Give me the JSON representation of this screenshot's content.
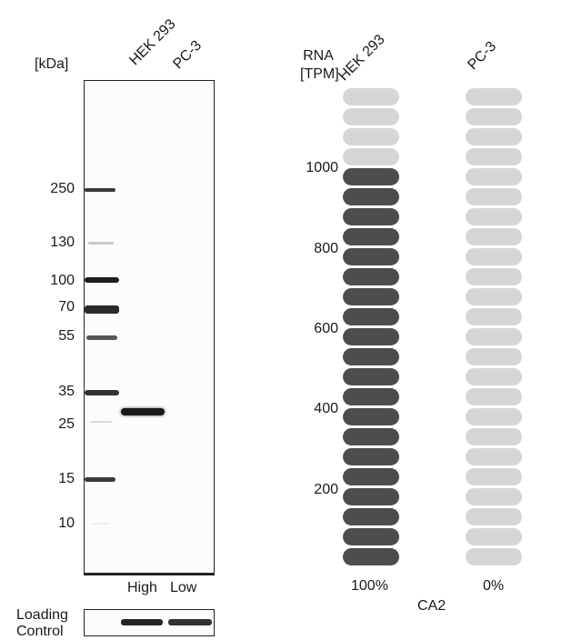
{
  "western_blot": {
    "unit_label": "[kDa]",
    "lanes": [
      "HEK 293",
      "PC-3"
    ],
    "markers": [
      "250",
      "130",
      "100",
      "70",
      "55",
      "35",
      "25",
      "15",
      "10"
    ],
    "expression": [
      "High",
      "Low"
    ],
    "loading_control_line1": "Loading",
    "loading_control_line2": "Control"
  },
  "rna": {
    "header_line1": "RNA",
    "header_line2": "[TPM]",
    "columns": [
      "HEK 293",
      "PC-3"
    ],
    "ticks": [
      "1000",
      "800",
      "600",
      "400",
      "200"
    ],
    "percentages": [
      "100%",
      "0%"
    ],
    "gene": "CA2",
    "colors": {
      "filled": "#4d4d4d",
      "empty": "#d6d6d6"
    },
    "hek293_filled_fraction": 0.84,
    "pc3_filled_fraction": 0
  }
}
